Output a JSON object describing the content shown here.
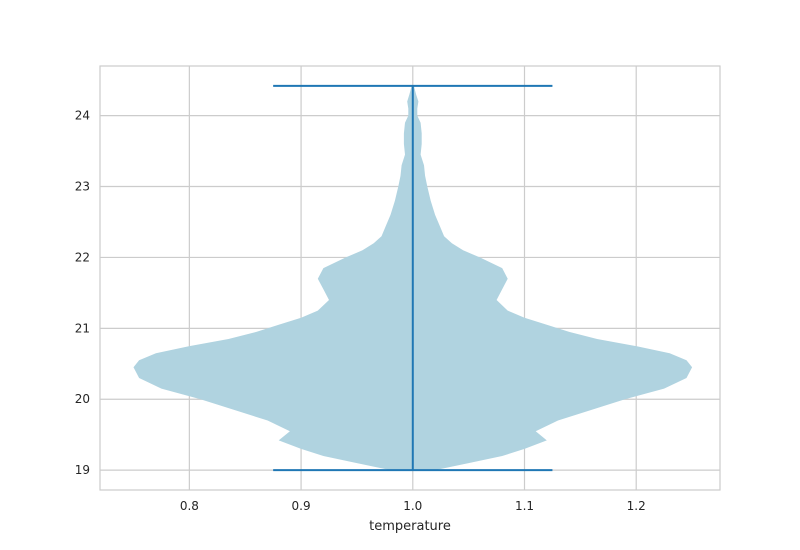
{
  "chart_data": {
    "type": "violin",
    "xlabel": "temperature",
    "ylabel": "",
    "title": "",
    "xlim": [
      0.72,
      1.275
    ],
    "ylim": [
      18.72,
      24.7
    ],
    "xticks": [
      0.8,
      0.9,
      1.0,
      1.1,
      1.2
    ],
    "xtick_labels": [
      "0.8",
      "0.9",
      "1.0",
      "1.1",
      "1.2"
    ],
    "yticks": [
      19,
      20,
      21,
      22,
      23,
      24
    ],
    "ytick_labels": [
      "19",
      "20",
      "21",
      "22",
      "23",
      "24"
    ],
    "grid": true,
    "violin": {
      "position": 1.0,
      "min": 19.0,
      "max": 24.42,
      "cap_halfwidth": 0.125,
      "max_halfwidth": 0.25,
      "fill_color": "#b0d3e0",
      "line_color": "#1f77b4",
      "density_profile": {
        "y": [
          19.0,
          19.1,
          19.2,
          19.3,
          19.42,
          19.55,
          19.7,
          19.85,
          20.0,
          20.15,
          20.3,
          20.45,
          20.55,
          20.65,
          20.75,
          20.85,
          20.95,
          21.05,
          21.15,
          21.25,
          21.4,
          21.55,
          21.7,
          21.85,
          22.0,
          22.1,
          22.2,
          22.3,
          22.45,
          22.6,
          22.8,
          23.0,
          23.15,
          23.3,
          23.45,
          23.6,
          23.75,
          23.9,
          24.0,
          24.1,
          24.2,
          24.3,
          24.42
        ],
        "halfwidth": [
          0.02,
          0.05,
          0.08,
          0.1,
          0.12,
          0.11,
          0.13,
          0.16,
          0.19,
          0.225,
          0.245,
          0.25,
          0.245,
          0.23,
          0.2,
          0.165,
          0.14,
          0.12,
          0.1,
          0.085,
          0.075,
          0.08,
          0.085,
          0.08,
          0.06,
          0.045,
          0.035,
          0.028,
          0.024,
          0.02,
          0.016,
          0.013,
          0.011,
          0.01,
          0.007,
          0.008,
          0.008,
          0.007,
          0.004,
          0.004,
          0.005,
          0.003,
          0.001
        ]
      }
    }
  }
}
